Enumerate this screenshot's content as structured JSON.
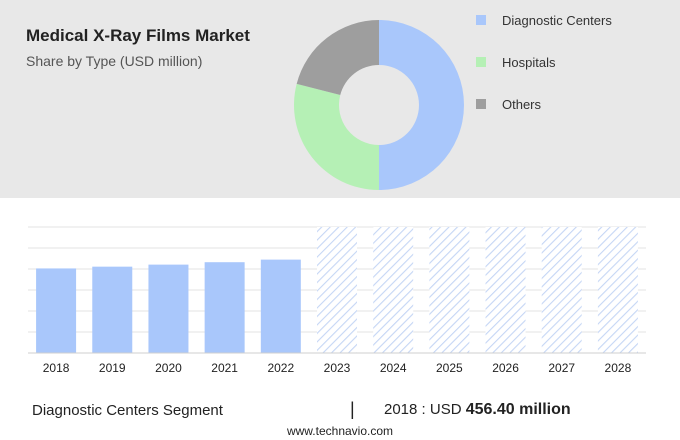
{
  "header": {
    "title": "Medical X-Ray Films Market",
    "subtitle": "Share by Type (USD million)"
  },
  "footer": {
    "segment_label": "Diagnostic Centers Segment",
    "separator": "|",
    "year_prefix": "2018 : USD ",
    "value_text": "456.40 million",
    "site": "www.technavio.com"
  },
  "chart_data": [
    {
      "type": "pie",
      "donut": true,
      "legend_position": "right",
      "slices": [
        {
          "name": "Diagnostic Centers",
          "value": 50,
          "color": "#a9c7fb"
        },
        {
          "name": "Hospitals",
          "value": 29,
          "color": "#b5f0b5"
        },
        {
          "name": "Others",
          "value": 21,
          "color": "#9e9e9e"
        }
      ]
    },
    {
      "type": "bar",
      "categories": [
        "2018",
        "2019",
        "2020",
        "2021",
        "2022",
        "2023",
        "2024",
        "2025",
        "2026",
        "2027",
        "2028"
      ],
      "values": [
        456.4,
        466,
        477,
        490,
        504,
        null,
        null,
        null,
        null,
        null,
        null
      ],
      "forecast_categories": [
        "2023",
        "2024",
        "2025",
        "2026",
        "2027",
        "2028"
      ],
      "ylim": [
        0,
        680
      ],
      "grid": true,
      "colors": {
        "bar": "#a9c7fb",
        "forecast_hatch": "#c5d6f5"
      }
    }
  ]
}
